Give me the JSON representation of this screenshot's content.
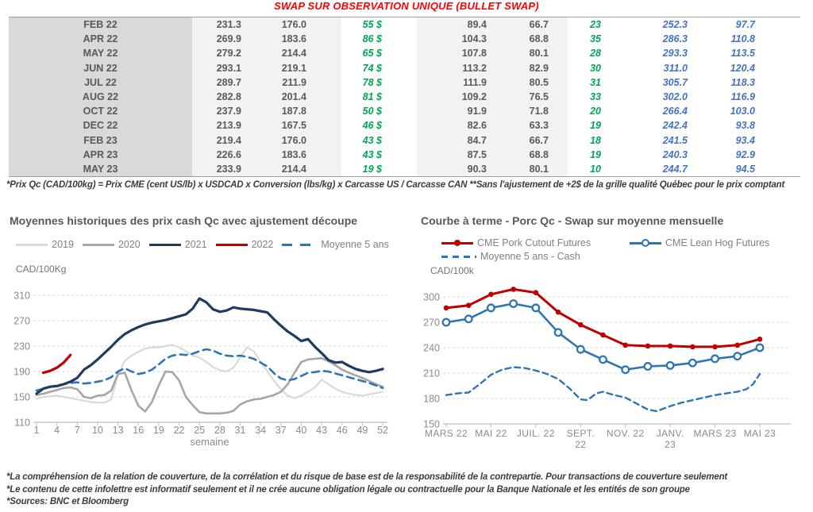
{
  "title": "SWAP SUR OBSERVATION UNIQUE (BULLET SWAP)",
  "table": {
    "rows": [
      [
        "FEB 22",
        "231.3",
        "176.0",
        "55 $",
        "89.4",
        "66.7",
        "23",
        "252.3",
        "97.7"
      ],
      [
        "APR 22",
        "269.9",
        "183.6",
        "86 $",
        "104.3",
        "68.8",
        "35",
        "286.3",
        "110.8"
      ],
      [
        "MAY 22",
        "279.2",
        "214.4",
        "65 $",
        "107.8",
        "80.1",
        "28",
        "293.3",
        "113.5"
      ],
      [
        "JUN 22",
        "293.1",
        "219.1",
        "74 $",
        "113.2",
        "82.9",
        "30",
        "311.0",
        "120.4"
      ],
      [
        "JUL 22",
        "289.7",
        "211.9",
        "78 $",
        "111.9",
        "80.5",
        "31",
        "305.7",
        "118.3"
      ],
      [
        "AUG 22",
        "282.8",
        "201.4",
        "81 $",
        "109.2",
        "76.5",
        "33",
        "302.0",
        "116.9"
      ],
      [
        "OCT 22",
        "237.9",
        "187.8",
        "50 $",
        "91.9",
        "71.8",
        "20",
        "266.4",
        "103.0"
      ],
      [
        "DEC 22",
        "213.9",
        "167.5",
        "46 $",
        "82.6",
        "63.3",
        "19",
        "242.4",
        "93.8"
      ],
      [
        "FEB 23",
        "219.4",
        "176.0",
        "43 $",
        "84.7",
        "66.7",
        "18",
        "241.5",
        "93.4"
      ],
      [
        "APR 23",
        "226.6",
        "183.6",
        "43 $",
        "87.5",
        "68.8",
        "19",
        "240.3",
        "92.9"
      ],
      [
        "MAY 23",
        "233.9",
        "214.4",
        "19 $",
        "90.3",
        "80.1",
        "10",
        "244.7",
        "94.5"
      ]
    ],
    "note": "*Prix Qc (CAD/100kg) = Prix CME (cent US/lb) x USDCAD x Conversion (lbs/kg) x Carcasse US / Carcasse CAN **Sans l'ajustement de +2$ de la grille qualité Québec pour le prix comptant"
  },
  "chart_data": [
    {
      "type": "line",
      "title": "Moyennes historiques des prix cash Qc avec ajustement découpe",
      "y_unit": "CAD/100Kg",
      "x_label": "semaine",
      "ylim": [
        110,
        310
      ],
      "y_ticks": [
        110,
        150,
        190,
        230,
        270,
        310
      ],
      "x_ticks": [
        1,
        4,
        7,
        10,
        13,
        16,
        19,
        22,
        25,
        28,
        31,
        34,
        37,
        40,
        43,
        46,
        49,
        52
      ],
      "grid": "dashed-horizontal",
      "legend_position": "top-center",
      "series": [
        {
          "name": "2019",
          "color": "#d9d9d9",
          "width": 2.2,
          "values": [
            147,
            150,
            151,
            152,
            150,
            148,
            146,
            144,
            142,
            141,
            141,
            146,
            185,
            207,
            215,
            221,
            226,
            228,
            228,
            230,
            232,
            228,
            222,
            215,
            212,
            205,
            197,
            192,
            190,
            196,
            212,
            228,
            222,
            205,
            190,
            175,
            162,
            152,
            148,
            152,
            158,
            165,
            177,
            170,
            163,
            158,
            155,
            153,
            152,
            154,
            156,
            158
          ]
        },
        {
          "name": "2020",
          "color": "#a6a6a6",
          "width": 2.6,
          "values": [
            153,
            155,
            158,
            161,
            164,
            165,
            162,
            150,
            148,
            152,
            153,
            160,
            186,
            188,
            160,
            136,
            127,
            142,
            168,
            190,
            189,
            176,
            150,
            137,
            126,
            124,
            124,
            124,
            125,
            128,
            138,
            143,
            146,
            147,
            150,
            153,
            158,
            170,
            188,
            205,
            209,
            210,
            211,
            206,
            200,
            193,
            188,
            184,
            180,
            175,
            170,
            166
          ]
        },
        {
          "name": "2021",
          "color": "#1f3b5d",
          "width": 3.2,
          "values": [
            155,
            163,
            166,
            167,
            170,
            174,
            180,
            193,
            200,
            209,
            219,
            229,
            240,
            249,
            255,
            260,
            264,
            267,
            269,
            271,
            274,
            277,
            280,
            289,
            305,
            299,
            288,
            284,
            286,
            291,
            289,
            288,
            287,
            285,
            283,
            272,
            262,
            253,
            246,
            238,
            241,
            229,
            219,
            208,
            204,
            205,
            199,
            194,
            191,
            189,
            191,
            194
          ]
        },
        {
          "name": "2022",
          "color": "#c00000",
          "width": 3.2,
          "values": [
            null,
            188,
            191,
            196,
            204,
            216
          ]
        },
        {
          "name": "Moyenne 5 ans",
          "color": "#2e75b6",
          "width": 2.6,
          "dash": "9 6",
          "values": [
            160,
            163,
            166,
            168,
            170,
            172,
            173,
            171,
            172,
            174,
            176,
            181,
            190,
            195,
            190,
            186,
            188,
            193,
            201,
            210,
            215,
            217,
            216,
            218,
            222,
            225,
            223,
            218,
            215,
            214,
            215,
            213,
            210,
            204,
            198,
            187,
            179,
            176,
            178,
            183,
            188,
            189,
            191,
            190,
            187,
            184,
            181,
            178,
            175,
            172,
            168,
            164
          ]
        }
      ]
    },
    {
      "type": "line",
      "title": "Courbe à terme - Porc Qc - Swap sur moyenne mensuelle",
      "y_unit": "CAD/100k",
      "ylim": [
        150,
        300
      ],
      "y_ticks": [
        150,
        180,
        210,
        240,
        270,
        300
      ],
      "x_ticks": [
        {
          "i": 0,
          "lines": [
            "MARS 22"
          ]
        },
        {
          "i": 2,
          "lines": [
            "MAI 22"
          ]
        },
        {
          "i": 4,
          "lines": [
            "JUIL. 22"
          ]
        },
        {
          "i": 6,
          "lines": [
            "SEPT.",
            "22"
          ]
        },
        {
          "i": 8,
          "lines": [
            "NOV. 22"
          ]
        },
        {
          "i": 10,
          "lines": [
            "JANV.",
            "23"
          ]
        },
        {
          "i": 12,
          "lines": [
            "MARS 23"
          ]
        },
        {
          "i": 14,
          "lines": [
            "MAI 23"
          ]
        }
      ],
      "grid": "dashed-horizontal",
      "legend_position": "top-left",
      "series": [
        {
          "name": "CME Pork Cutout Futures",
          "color": "#c00000",
          "width": 3,
          "marker": "dot",
          "values": [
            287,
            290,
            303,
            309,
            305,
            282,
            267,
            255,
            243,
            242,
            242,
            241,
            241,
            243,
            250
          ]
        },
        {
          "name": "CME Lean Hog Futures",
          "color": "#2e75b6",
          "width": 2.6,
          "marker": "circle",
          "values": [
            270,
            274,
            287,
            292,
            287,
            258,
            238,
            226,
            214,
            218,
            219,
            222,
            227,
            230,
            240
          ]
        },
        {
          "name": "Moyenne 5 ans - Cash",
          "color": "#2e75b6",
          "width": 2.4,
          "dash": "7 5",
          "points": [
            [
              0,
              184
            ],
            [
              0.5,
              186
            ],
            [
              1,
              187
            ],
            [
              1.5,
              197
            ],
            [
              2,
              208
            ],
            [
              2.5,
              214
            ],
            [
              3,
              217
            ],
            [
              3.5,
              216
            ],
            [
              4,
              213
            ],
            [
              4.5,
              209
            ],
            [
              5,
              203
            ],
            [
              5.5,
              192
            ],
            [
              6,
              179
            ],
            [
              6.3,
              178
            ],
            [
              6.7,
              186
            ],
            [
              7,
              188
            ],
            [
              7.5,
              184
            ],
            [
              8,
              181
            ],
            [
              8.5,
              174
            ],
            [
              9,
              167
            ],
            [
              9.4,
              165
            ],
            [
              10,
              171
            ],
            [
              10.5,
              175
            ],
            [
              11,
              178
            ],
            [
              11.5,
              181
            ],
            [
              12,
              184
            ],
            [
              12.5,
              186
            ],
            [
              13,
              188
            ],
            [
              13.4,
              191
            ],
            [
              13.7,
              197
            ],
            [
              14,
              209
            ]
          ]
        }
      ]
    }
  ],
  "footer_notes": [
    "*La compréhension de la relation de couverture, de la corrélation et du risque de base est de la responsabilité de la contrepartie. Pour transactions de couverture seulement",
    "*Le contenu de cette infolettre est informatif seulement et il ne crée aucune obligation légale ou contractuelle pour la Banque Nationale et les entités de son groupe",
    "*Sources: BNC et Bloomberg"
  ]
}
